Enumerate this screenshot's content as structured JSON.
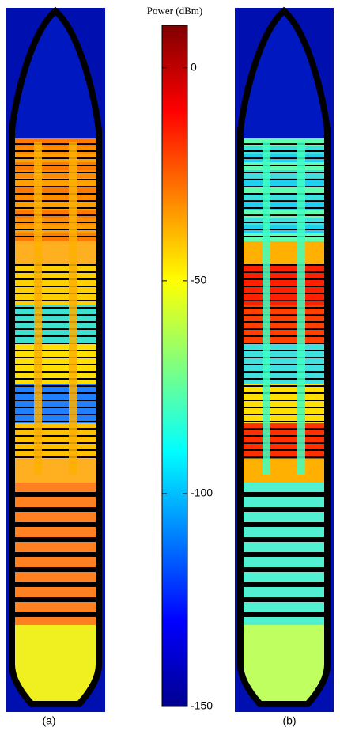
{
  "chart_data": {
    "type": "heatmap",
    "colorbar_label": "Power (dBm)",
    "clim": [
      -150,
      10
    ],
    "cticks": [
      0,
      -50,
      -100,
      -150
    ],
    "colormap": "jet",
    "panels": [
      "(a)",
      "(b)"
    ]
  }
}
